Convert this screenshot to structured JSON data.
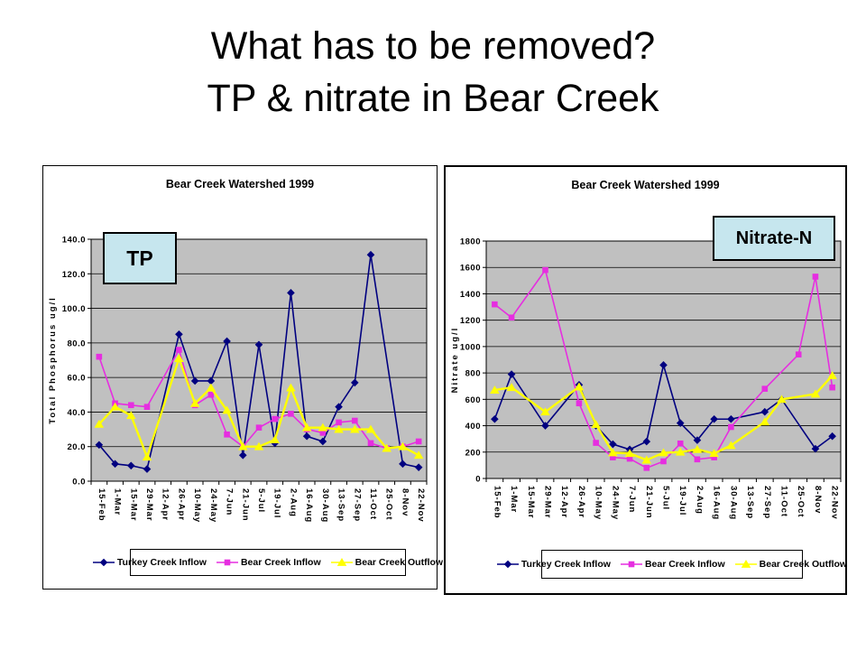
{
  "slide": {
    "title_line1": "What has to be removed?",
    "title_line2": "TP & nitrate in Bear Creek"
  },
  "colors": {
    "turkey_creek_inflow": "#000080",
    "bear_creek_inflow": "#e62ee0",
    "bear_creek_outflow": "#ffff00",
    "plot_background": "#c0c0c0",
    "overlay_label_background": "#c6e6ee"
  },
  "chart_data": [
    {
      "type": "line",
      "title": "Bear Creek Watershed 1999",
      "overlay_label": "TP",
      "ylabel": "Total Phosphorus ug/l",
      "ylim": [
        0,
        140
      ],
      "ystep": 20,
      "y_decimals": 1,
      "grid": true,
      "legend_position": "bottom",
      "categories": [
        "15-Feb",
        "1-Mar",
        "15-Mar",
        "29-Mar",
        "12-Apr",
        "26-Apr",
        "10-May",
        "24-May",
        "7-Jun",
        "21-Jun",
        "5-Jul",
        "19-Jul",
        "2-Aug",
        "16-Aug",
        "30-Aug",
        "13-Sep",
        "27-Sep",
        "11-Oct",
        "25-Oct",
        "8-Nov",
        "22-Nov"
      ],
      "series": [
        {
          "name": "Turkey Creek Inflow",
          "marker": "diamond",
          "color": "#000080",
          "values": [
            21,
            10,
            9,
            7,
            null,
            85,
            58,
            58,
            81,
            15,
            79,
            22,
            109,
            26,
            23,
            43,
            57,
            131,
            null,
            10,
            8
          ]
        },
        {
          "name": "Bear Creek Inflow",
          "marker": "square",
          "color": "#e62ee0",
          "values": [
            72,
            45,
            44,
            43,
            null,
            76,
            44,
            50,
            27,
            20,
            31,
            36,
            39,
            30,
            28,
            34,
            35,
            22,
            19,
            20,
            23
          ]
        },
        {
          "name": "Bear Creek Outflow",
          "marker": "triangle",
          "color": "#ffff00",
          "values": [
            33,
            43,
            38,
            14,
            null,
            71,
            45,
            54,
            41,
            20,
            20,
            24,
            54,
            31,
            31,
            30,
            30,
            30,
            19,
            20,
            15
          ]
        }
      ]
    },
    {
      "type": "line",
      "title": "Bear Creek Watershed 1999",
      "overlay_label": "Nitrate-N",
      "ylabel": "Nitrate ug/l",
      "ylim": [
        0,
        1800
      ],
      "ystep": 200,
      "y_decimals": 0,
      "grid": true,
      "legend_position": "bottom",
      "categories": [
        "15-Feb",
        "1-Mar",
        "15-Mar",
        "29-Mar",
        "12-Apr",
        "26-Apr",
        "10-May",
        "24-May",
        "7-Jun",
        "21-Jun",
        "5-Jul",
        "19-Jul",
        "2-Aug",
        "16-Aug",
        "30-Aug",
        "13-Sep",
        "27-Sep",
        "11-Oct",
        "25-Oct",
        "8-Nov",
        "22-Nov"
      ],
      "series": [
        {
          "name": "Turkey Creek Inflow",
          "marker": "diamond",
          "color": "#000080",
          "values": [
            450,
            790,
            null,
            400,
            null,
            710,
            400,
            260,
            220,
            280,
            860,
            420,
            290,
            450,
            450,
            null,
            505,
            600,
            null,
            225,
            320
          ]
        },
        {
          "name": "Bear Creek Inflow",
          "marker": "square",
          "color": "#e62ee0",
          "values": [
            1320,
            1220,
            null,
            1580,
            null,
            570,
            270,
            160,
            150,
            80,
            130,
            265,
            145,
            160,
            390,
            null,
            680,
            null,
            940,
            1530,
            690
          ]
        },
        {
          "name": "Bear Creek Outflow",
          "marker": "triangle",
          "color": "#ffff00",
          "values": [
            670,
            690,
            null,
            505,
            null,
            695,
            410,
            195,
            190,
            140,
            195,
            200,
            220,
            190,
            250,
            null,
            430,
            600,
            null,
            640,
            780
          ]
        }
      ]
    }
  ]
}
